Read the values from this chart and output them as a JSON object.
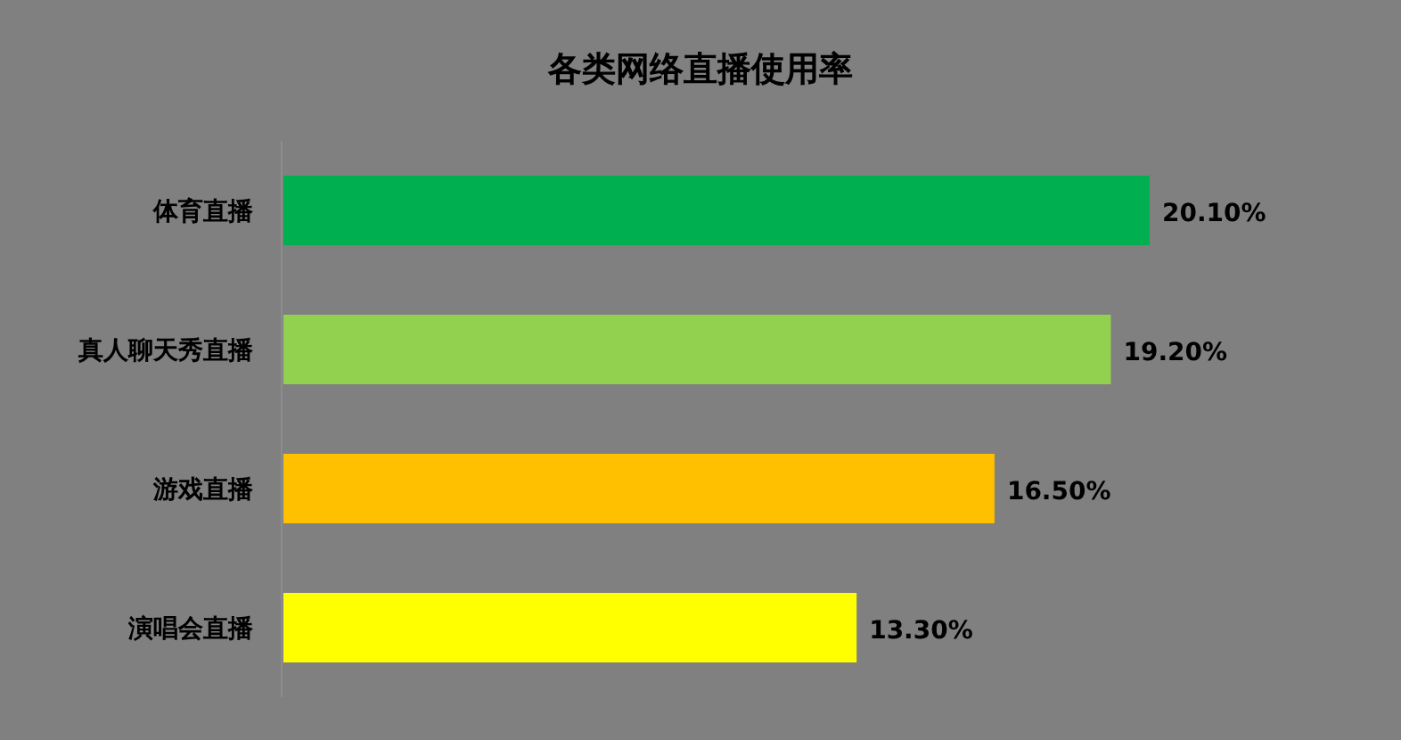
{
  "chart_data": {
    "type": "bar",
    "orientation": "horizontal",
    "title": "各类网络直播使用率",
    "categories": [
      "体育直播",
      "真人聊天秀直播",
      "游戏直播",
      "演唱会直播"
    ],
    "values": [
      20.1,
      19.2,
      16.5,
      13.3
    ],
    "colors": [
      "#00b050",
      "#92d050",
      "#ffc000",
      "#ffff00"
    ],
    "value_labels": [
      "20.10%",
      "19.20%",
      "16.50%",
      "13.30%"
    ]
  }
}
